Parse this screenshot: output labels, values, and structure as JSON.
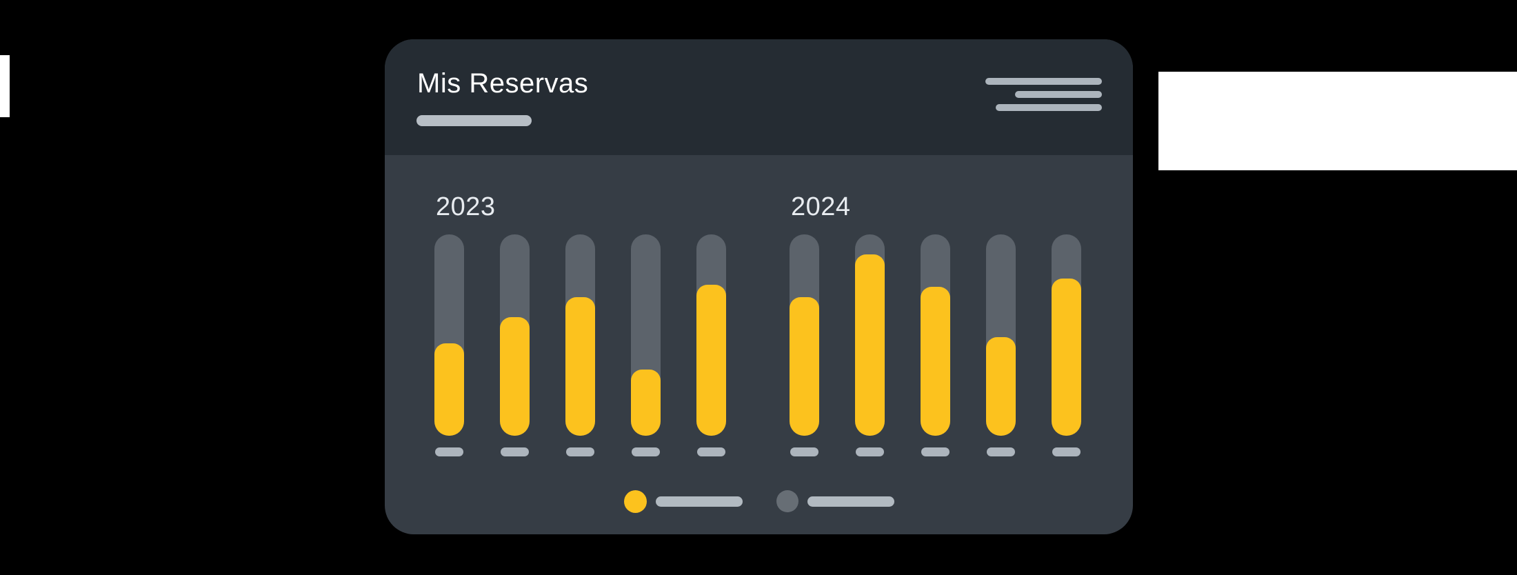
{
  "chart_data": {
    "type": "bar",
    "title": "Mis Reservas",
    "ylabel": "",
    "xlabel": "",
    "unit": "percent of bar track filled",
    "ylim": [
      0,
      100
    ],
    "grid": false,
    "groups": [
      {
        "label": "2023",
        "values": [
          46,
          59,
          69,
          33,
          75
        ]
      },
      {
        "label": "2024",
        "values": [
          69,
          90,
          74,
          49,
          78
        ]
      }
    ],
    "legend_position": "bottom-center",
    "legend": [
      {
        "swatch_color": "#fcc21e",
        "label": ""
      },
      {
        "swatch_color": "#676e75",
        "label": ""
      }
    ],
    "colors": {
      "bar_fill": "#fcc21e",
      "bar_track": "#5c636b",
      "axis_dash": "#adb5bd",
      "year_label_text": "#e8ecf0"
    }
  },
  "card": {
    "header": {
      "title": "Mis Reservas",
      "title_color": "#ffffff",
      "underline_color": "#b7bec5",
      "menu_icon": "hamburger-menu-icon",
      "background": "#252c33"
    },
    "background": "#363d45"
  },
  "canvas": {
    "background": "#000000",
    "white_fragment_left": true,
    "white_fragment_right": true
  }
}
